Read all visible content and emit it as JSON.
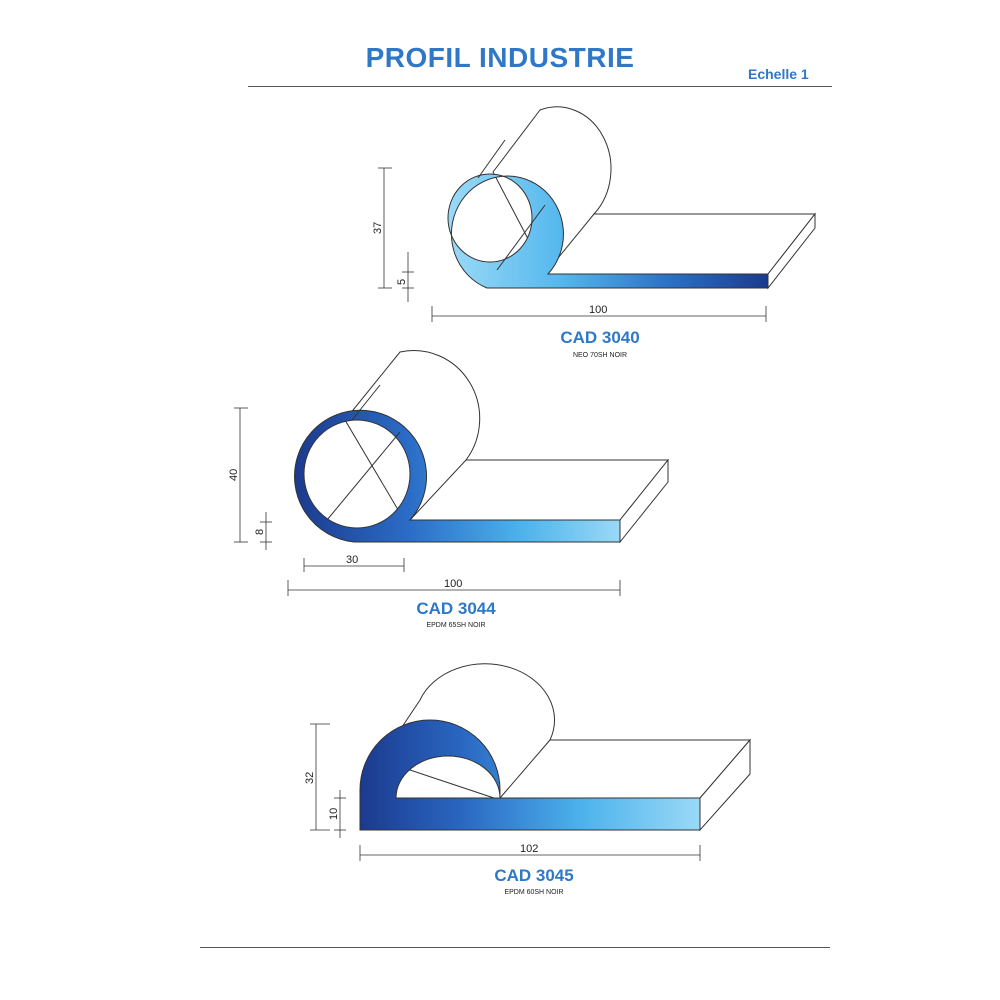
{
  "header": {
    "title": "PROFIL INDUSTRIE",
    "scale": "Echelle 1"
  },
  "profiles": [
    {
      "code": "CAD 3040",
      "material": "NEO 70SH NOIR",
      "dims": {
        "height": "37",
        "thickness": "5",
        "width": "100"
      }
    },
    {
      "code": "CAD 3044",
      "material": "EPDM 65SH NOIR",
      "dims": {
        "height": "40",
        "thickness": "8",
        "bulb": "30",
        "width": "100"
      }
    },
    {
      "code": "CAD 3045",
      "material": "EPDM 60SH NOIR",
      "dims": {
        "height": "32",
        "thickness": "10",
        "width": "102"
      }
    }
  ],
  "colors": {
    "title": "#2f78c8",
    "profile_light": "#8fd4f6",
    "profile_mid": "#3a8fdc",
    "profile_dark": "#1b3a8e"
  }
}
